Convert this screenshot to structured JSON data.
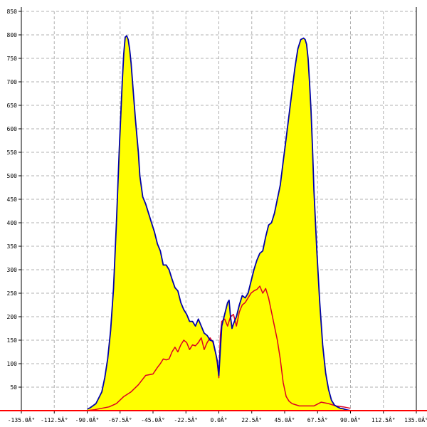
{
  "chart_data": {
    "type": "area",
    "title": "",
    "xlabel": "",
    "ylabel": "",
    "xlim": [
      -135,
      135
    ],
    "ylim": [
      0,
      850
    ],
    "grid": true,
    "x_ticks": [
      -135,
      -112.5,
      -90,
      -67.5,
      -45,
      -22.5,
      0,
      22.5,
      45,
      67.5,
      90,
      112.5,
      135
    ],
    "x_tick_labels": [
      "-135.0Â°",
      "-112.5Â°",
      "-90.0Â°",
      "-67.5Â°",
      "-45.0Â°",
      "-22.5Â°",
      "0.0Â°",
      "22.5Â°",
      "45.0Â°",
      "67.5Â°",
      "90.0Â°",
      "112.5Â°",
      "135.0Â°"
    ],
    "y_ticks": [
      50,
      100,
      150,
      200,
      250,
      300,
      350,
      400,
      450,
      500,
      550,
      600,
      650,
      700,
      750,
      800,
      850
    ],
    "y_tick_labels": [
      "50",
      "100",
      "150",
      "200",
      "250",
      "300",
      "350",
      "400",
      "450",
      "500",
      "550",
      "600",
      "650",
      "700",
      "750",
      "800",
      "850"
    ],
    "colors": {
      "fill": "#ffff00",
      "series1": "#0000aa",
      "series2": "#dd0022",
      "baseline": "#ff0000",
      "grid": "#b0b0b0"
    },
    "series": [
      {
        "x": [
          -90,
          -88,
          -84,
          -80,
          -78,
          -76,
          -74,
          -72,
          -70,
          -68,
          -66,
          -65,
          -64,
          -63,
          -62,
          -61,
          -60,
          -59,
          -57,
          -55,
          -54,
          -52,
          -50,
          -48,
          -46,
          -44,
          -42,
          -40,
          -38,
          -36,
          -34,
          -32,
          -30,
          -28,
          -26,
          -24,
          -22,
          -20,
          -18,
          -16,
          -14,
          -12,
          -10,
          -8,
          -6,
          -4,
          -2,
          -1,
          0,
          1,
          2,
          4,
          6,
          7,
          8,
          9,
          10,
          12,
          14,
          16,
          18,
          20,
          22,
          24,
          26,
          28,
          30,
          32,
          34,
          36,
          38,
          40,
          42,
          44,
          46,
          48,
          50,
          52,
          54,
          56,
          58,
          59,
          60,
          61,
          62,
          63,
          64,
          65,
          67,
          69,
          71,
          73,
          75,
          77,
          79,
          81,
          83,
          85,
          87,
          90
        ],
        "values": [
          3,
          6,
          15,
          40,
          70,
          110,
          170,
          260,
          400,
          560,
          700,
          760,
          795,
          798,
          790,
          770,
          740,
          700,
          620,
          550,
          500,
          455,
          440,
          420,
          400,
          380,
          355,
          340,
          310,
          310,
          300,
          280,
          262,
          255,
          230,
          215,
          205,
          190,
          190,
          180,
          195,
          180,
          165,
          160,
          150,
          148,
          120,
          105,
          75,
          130,
          180,
          205,
          230,
          235,
          200,
          175,
          185,
          200,
          225,
          245,
          240,
          250,
          275,
          300,
          320,
          335,
          340,
          370,
          395,
          400,
          420,
          450,
          480,
          530,
          580,
          630,
          680,
          730,
          770,
          790,
          793,
          790,
          780,
          750,
          700,
          640,
          560,
          470,
          340,
          230,
          140,
          80,
          45,
          22,
          12,
          8,
          5,
          4,
          2,
          0
        ]
      },
      {
        "x": [
          -90,
          -85,
          -80,
          -75,
          -70,
          -65,
          -60,
          -55,
          -50,
          -45,
          -42,
          -40,
          -38,
          -36,
          -34,
          -32,
          -30,
          -28,
          -26,
          -24,
          -22,
          -20,
          -18,
          -16,
          -14,
          -12,
          -10,
          -8,
          -6,
          -4,
          -2,
          -1,
          0,
          1,
          2,
          4,
          6,
          8,
          10,
          12,
          14,
          16,
          18,
          20,
          22,
          24,
          26,
          28,
          30,
          32,
          34,
          36,
          38,
          40,
          42,
          44,
          46,
          48,
          50,
          55,
          60,
          65,
          70,
          75,
          80,
          85,
          90
        ],
        "values": [
          0,
          2,
          5,
          8,
          15,
          30,
          40,
          55,
          75,
          78,
          92,
          100,
          110,
          108,
          110,
          125,
          135,
          125,
          140,
          150,
          145,
          130,
          140,
          138,
          145,
          155,
          130,
          145,
          155,
          145,
          120,
          100,
          70,
          160,
          190,
          195,
          180,
          200,
          205,
          180,
          210,
          225,
          230,
          240,
          250,
          255,
          258,
          265,
          250,
          260,
          240,
          210,
          180,
          150,
          110,
          60,
          30,
          20,
          15,
          10,
          10,
          10,
          18,
          15,
          10,
          8,
          5
        ]
      }
    ]
  }
}
